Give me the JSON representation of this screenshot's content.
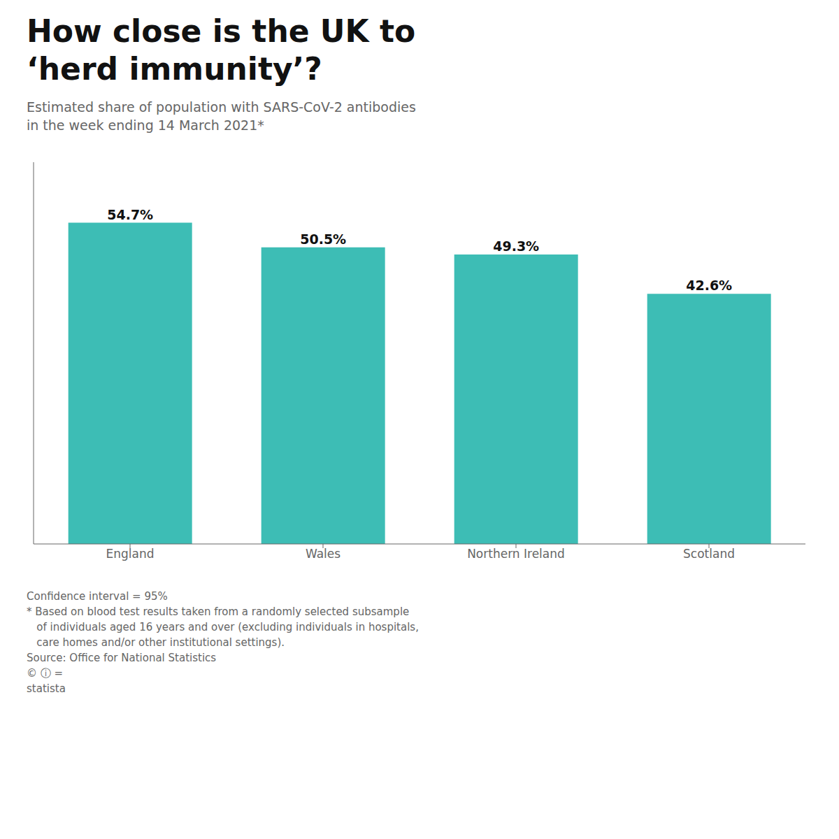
{
  "chart_data": {
    "type": "bar",
    "title": [
      "How close is the UK to",
      "‘herd immunity’?"
    ],
    "subtitle": [
      "Estimated share of population with SARS-CoV-2 antibodies",
      "in the week ending 14 March 2021*"
    ],
    "categories": [
      "England",
      "Wales",
      "Northern Ireland",
      "Scotland"
    ],
    "values": [
      54.7,
      50.5,
      49.3,
      42.6
    ],
    "value_labels": [
      "54.7%",
      "50.5%",
      "49.3%",
      "42.6%"
    ],
    "data_labels": true,
    "color": "#3DBDB5",
    "ylim": [
      0,
      65
    ],
    "grid": false,
    "tick_labels": "x",
    "annotations": [
      "Confidence interval = 95%",
      "* Based on blood test results taken from a randomly selected subsample",
      "   of individuals aged 16 years and over (excluding individuals in hospitals,",
      "   care homes and/or other institutional settings).",
      "Source: Office for National Statistics",
      "© ⓘ =",
      "statista"
    ]
  }
}
